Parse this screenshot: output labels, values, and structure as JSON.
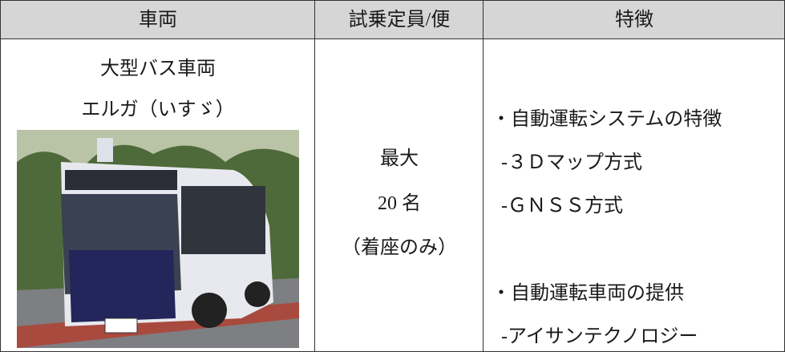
{
  "table": {
    "header": [
      "車両",
      "試乗定員/便",
      "特徴"
    ],
    "rows": [
      [
        {
          "lines": [
            "大型バス車両",
            "エルガ（いすゞ）"
          ]
        },
        {
          "lines": [
            "最大",
            "20 名",
            "（着座のみ）"
          ]
        },
        {
          "lines": [
            "・自動運転システムの特徴",
            "-３Ｄマップ方式",
            "-ＧＮＳＳ方式",
            "・自動運転車両の提供",
            "-アイサンテクノロジー"
          ]
        }
      ]
    ]
  }
}
